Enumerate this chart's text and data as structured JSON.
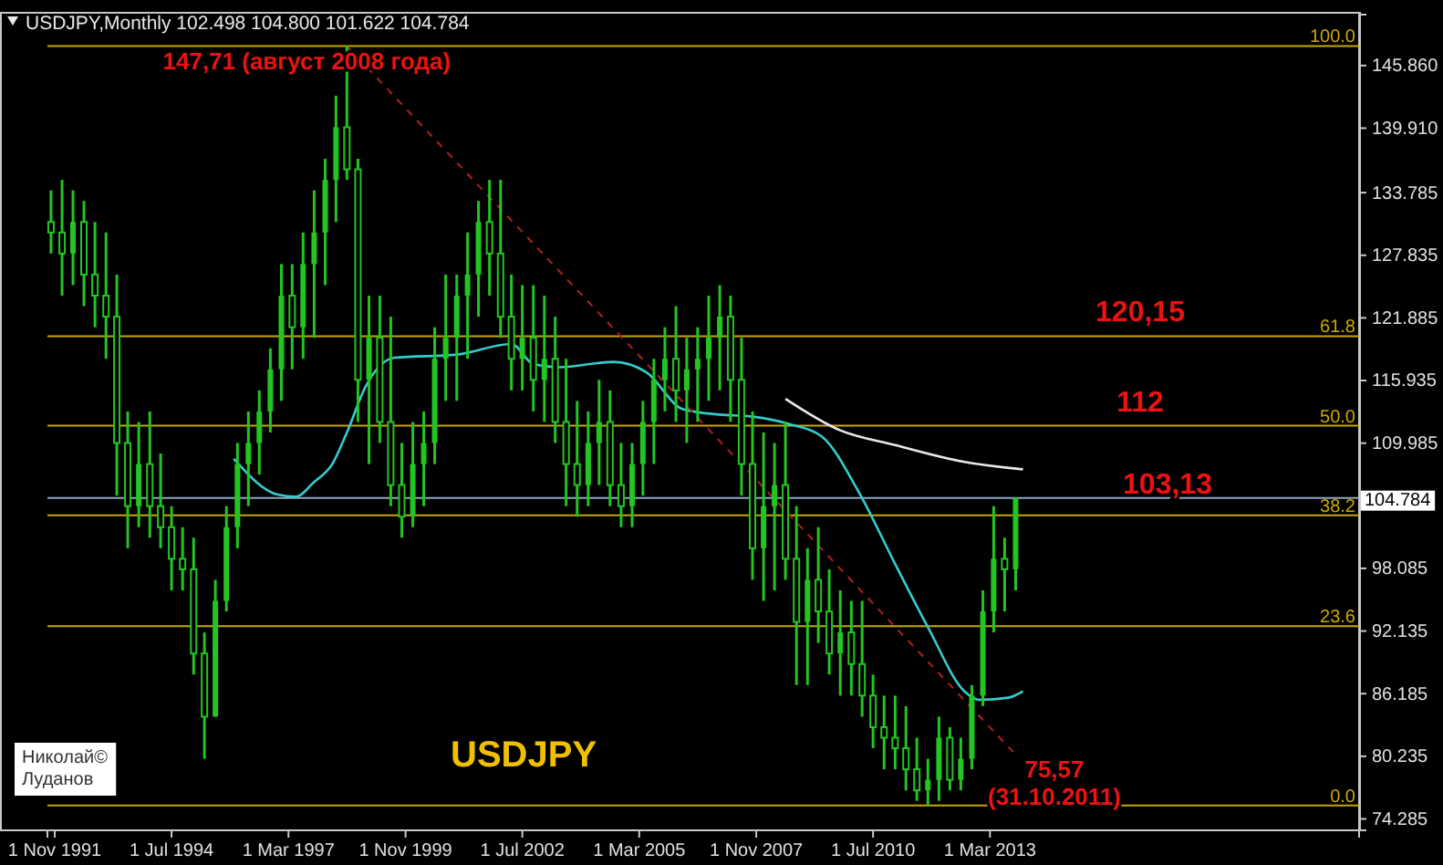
{
  "chart_data": {
    "type": "candlestick",
    "title": "USDJPY,Monthly  102.498 104.800 101.622 104.784",
    "color": "#22c522",
    "x": [
      "1991-10",
      "1992-01",
      "1992-04",
      "1992-07",
      "1992-10",
      "1993-01",
      "1993-04",
      "1993-07",
      "1993-10",
      "1994-01",
      "1994-04",
      "1994-07",
      "1994-10",
      "1995-01",
      "1995-04",
      "1995-07",
      "1995-10",
      "1996-01",
      "1996-04",
      "1996-07",
      "1996-10",
      "1997-01",
      "1997-04",
      "1997-07",
      "1997-10",
      "1998-01",
      "1998-04",
      "1998-07",
      "1998-10",
      "1999-01",
      "1999-04",
      "1999-07",
      "1999-10",
      "2000-01",
      "2000-04",
      "2000-07",
      "2000-10",
      "2001-01",
      "2001-04",
      "2001-07",
      "2001-10",
      "2002-01",
      "2002-04",
      "2002-07",
      "2002-10",
      "2003-01",
      "2003-04",
      "2003-07",
      "2003-10",
      "2004-01",
      "2004-04",
      "2004-07",
      "2004-10",
      "2005-01",
      "2005-04",
      "2005-07",
      "2005-10",
      "2006-01",
      "2006-04",
      "2006-07",
      "2006-10",
      "2007-01",
      "2007-04",
      "2007-07",
      "2007-10",
      "2008-01",
      "2008-04",
      "2008-07",
      "2008-10",
      "2009-01",
      "2009-04",
      "2009-07",
      "2009-10",
      "2010-01",
      "2010-04",
      "2010-07",
      "2010-10",
      "2011-01",
      "2011-04",
      "2011-07",
      "2011-10",
      "2012-01",
      "2012-04",
      "2012-07",
      "2012-10",
      "2013-01",
      "2013-04",
      "2013-07",
      "2013-10"
    ],
    "ohlc": [
      [
        131,
        134,
        128,
        130
      ],
      [
        130,
        135,
        124,
        128
      ],
      [
        128,
        134,
        125,
        131
      ],
      [
        131,
        133,
        123,
        126
      ],
      [
        126,
        131,
        121,
        124
      ],
      [
        124,
        130,
        118,
        122
      ],
      [
        122,
        126,
        105,
        110
      ],
      [
        110,
        113,
        100,
        104
      ],
      [
        104,
        112,
        102,
        108
      ],
      [
        108,
        113,
        101,
        104
      ],
      [
        104,
        109,
        100,
        102
      ],
      [
        102,
        104,
        96,
        99
      ],
      [
        99,
        102,
        96,
        98
      ],
      [
        98,
        101,
        88,
        90
      ],
      [
        90,
        92,
        80,
        84
      ],
      [
        84,
        97,
        84,
        95
      ],
      [
        95,
        104,
        94,
        102
      ],
      [
        102,
        110,
        100,
        108
      ],
      [
        108,
        113,
        104,
        110
      ],
      [
        110,
        115,
        107,
        113
      ],
      [
        113,
        119,
        111,
        117
      ],
      [
        117,
        127,
        114,
        124
      ],
      [
        124,
        127,
        117,
        121
      ],
      [
        121,
        130,
        118,
        127
      ],
      [
        127,
        134,
        120,
        130
      ],
      [
        130,
        137,
        125,
        135
      ],
      [
        135,
        143,
        131,
        140
      ],
      [
        140,
        147.71,
        135,
        136
      ],
      [
        136,
        137,
        112,
        116
      ],
      [
        116,
        124,
        108,
        120
      ],
      [
        120,
        124,
        110,
        112
      ],
      [
        112,
        122,
        104,
        106
      ],
      [
        106,
        110,
        101,
        103
      ],
      [
        103,
        112,
        102,
        108
      ],
      [
        108,
        113,
        104,
        110
      ],
      [
        110,
        121,
        108,
        118
      ],
      [
        118,
        126,
        114,
        120
      ],
      [
        120,
        126,
        114,
        124
      ],
      [
        124,
        130,
        118,
        126
      ],
      [
        126,
        133,
        122,
        131
      ],
      [
        131,
        135,
        124,
        128
      ],
      [
        128,
        135,
        120,
        122
      ],
      [
        122,
        126,
        115,
        118
      ],
      [
        118,
        125,
        115,
        120
      ],
      [
        120,
        125,
        113,
        116
      ],
      [
        116,
        124,
        112,
        118
      ],
      [
        118,
        122,
        110,
        112
      ],
      [
        112,
        118,
        104,
        108
      ],
      [
        108,
        114,
        103,
        106
      ],
      [
        106,
        113,
        104,
        110
      ],
      [
        110,
        116,
        106,
        112
      ],
      [
        112,
        115,
        104,
        106
      ],
      [
        106,
        110,
        102,
        104
      ],
      [
        104,
        110,
        102,
        108
      ],
      [
        108,
        114,
        105,
        112
      ],
      [
        112,
        118,
        108,
        116
      ],
      [
        116,
        121,
        113,
        118
      ],
      [
        118,
        123,
        112,
        115
      ],
      [
        115,
        120,
        110,
        117
      ],
      [
        117,
        121,
        112,
        118
      ],
      [
        118,
        124,
        114,
        120
      ],
      [
        120,
        125,
        115,
        122
      ],
      [
        122,
        124,
        112,
        116
      ],
      [
        116,
        120,
        105,
        108
      ],
      [
        108,
        113,
        97,
        100
      ],
      [
        100,
        111,
        95,
        104
      ],
      [
        104,
        110,
        96,
        106
      ],
      [
        106,
        112,
        97,
        99
      ],
      [
        99,
        104,
        87,
        93
      ],
      [
        93,
        100,
        87,
        97
      ],
      [
        97,
        102,
        91,
        94
      ],
      [
        94,
        98,
        88,
        90
      ],
      [
        90,
        96,
        86,
        92
      ],
      [
        92,
        95,
        86,
        89
      ],
      [
        89,
        95,
        84,
        86
      ],
      [
        86,
        88,
        81,
        83
      ],
      [
        83,
        86,
        79,
        82
      ],
      [
        82,
        86,
        79,
        81
      ],
      [
        81,
        85,
        77,
        79
      ],
      [
        79,
        82,
        76,
        77
      ],
      [
        77,
        80,
        75.57,
        78
      ],
      [
        78,
        84,
        76,
        82
      ],
      [
        82,
        83,
        77,
        78
      ],
      [
        78,
        82,
        77,
        80
      ],
      [
        80,
        87,
        79,
        86
      ],
      [
        86,
        96,
        85,
        94
      ],
      [
        94,
        104,
        92,
        99
      ],
      [
        99,
        101,
        94,
        98
      ],
      [
        98,
        104.8,
        96,
        104.784
      ]
    ],
    "series": [
      {
        "type": "line",
        "color": "#33cccc",
        "x": [
          "1995-12",
          "1996-12",
          "1997-05",
          "1997-10",
          "1998-03",
          "1998-07",
          "1998-12",
          "1999-08",
          "2001-01",
          "2002-04",
          "2002-10",
          "2003-05",
          "2004-08",
          "2005-05",
          "2006-03",
          "2007-01",
          "2007-10",
          "2008-08",
          "2009-05",
          "2010-03",
          "2011-01",
          "2011-10",
          "2012-08",
          "2012-12",
          "2013-08",
          "2013-12"
        ],
        "values": [
          108.5,
          105.1,
          104.9,
          106.3,
          108.0,
          111.0,
          115.3,
          118.1,
          118.4,
          119.4,
          117.5,
          117.2,
          117.7,
          116.7,
          113.2,
          112.7,
          112.5,
          111.8,
          110.6,
          105.4,
          98.5,
          92.5,
          86.4,
          85.6,
          85.8,
          86.4
        ]
      },
      {
        "type": "line",
        "color": "#e8e8e8",
        "x": [
          "2008-07",
          "2009-10",
          "2011-01",
          "2012-08",
          "2013-12"
        ],
        "values": [
          114.2,
          111.2,
          109.8,
          108.2,
          107.5
        ]
      },
      {
        "type": "line",
        "color": "#b02020",
        "line_style": "dashed",
        "x": [
          "1998-07",
          "2013-10"
        ],
        "values": [
          147.7,
          80.4
        ]
      }
    ],
    "xlim": [
      "1991-09",
      "2021-08"
    ],
    "xticks": [
      {
        "value": "1991-11-01",
        "label": "1 Nov 1991"
      },
      {
        "value": "1994-07-01",
        "label": "1 Jul 1994"
      },
      {
        "value": "1997-03-01",
        "label": "1 Mar 1997"
      },
      {
        "value": "1999-11-01",
        "label": "1 Nov 1999"
      },
      {
        "value": "2002-07-01",
        "label": "1 Jul 2002"
      },
      {
        "value": "2005-03-01",
        "label": "1 Mar 2005"
      },
      {
        "value": "2007-11-01",
        "label": "1 Nov 2007"
      },
      {
        "value": "2010-07-01",
        "label": "1 Jul 2010"
      },
      {
        "value": "2013-03-01",
        "label": "1 Mar 2013"
      }
    ],
    "ylim": [
      73.2,
      150.7
    ],
    "yticks": [
      {
        "value": 74.285,
        "label": "74.285"
      },
      {
        "value": 80.235,
        "label": "80.235"
      },
      {
        "value": 86.185,
        "label": "86.185"
      },
      {
        "value": 92.135,
        "label": "92.135"
      },
      {
        "value": 98.085,
        "label": "98.085"
      },
      {
        "value": 109.985,
        "label": "109.985"
      },
      {
        "value": 115.935,
        "label": "115.935"
      },
      {
        "value": 121.885,
        "label": "121.885"
      },
      {
        "value": 127.835,
        "label": "127.835"
      },
      {
        "value": 133.785,
        "label": "133.785"
      },
      {
        "value": 139.91,
        "label": "139.910"
      },
      {
        "value": 145.86,
        "label": "145.860"
      }
    ],
    "ref_lines": [
      {
        "axis": "y",
        "value": 147.71,
        "color": "#c8a800"
      },
      {
        "axis": "y",
        "value": 120.15,
        "color": "#c8a800"
      },
      {
        "axis": "y",
        "value": 111.64,
        "color": "#c8a800"
      },
      {
        "axis": "y",
        "value": 103.13,
        "color": "#c8a800"
      },
      {
        "axis": "y",
        "value": 92.6,
        "color": "#c8a800"
      },
      {
        "axis": "y",
        "value": 75.57,
        "color": "#c8a800"
      },
      {
        "axis": "y",
        "value": 104.784,
        "label": "104.784",
        "color": "#8fa8c0"
      }
    ],
    "annotations": [
      {
        "text": "147,71 (август 2008 года)",
        "x": "1998-07",
        "y": 147.71
      },
      {
        "text": "120,15",
        "y": 120.15
      },
      {
        "text": "112",
        "y": 111.64
      },
      {
        "text": "103,13",
        "y": 103.13
      },
      {
        "text": "100.0",
        "y": 147.71
      },
      {
        "text": "61.8",
        "y": 120.15
      },
      {
        "text": "50.0",
        "y": 111.64
      },
      {
        "text": "38.2",
        "y": 103.13
      },
      {
        "text": "23.6",
        "y": 92.6
      },
      {
        "text": "0.0",
        "y": 75.57
      },
      "75,57 (31.10.2011)",
      "USDJPY",
      "Николай© Луданов"
    ],
    "grid": false
  }
}
